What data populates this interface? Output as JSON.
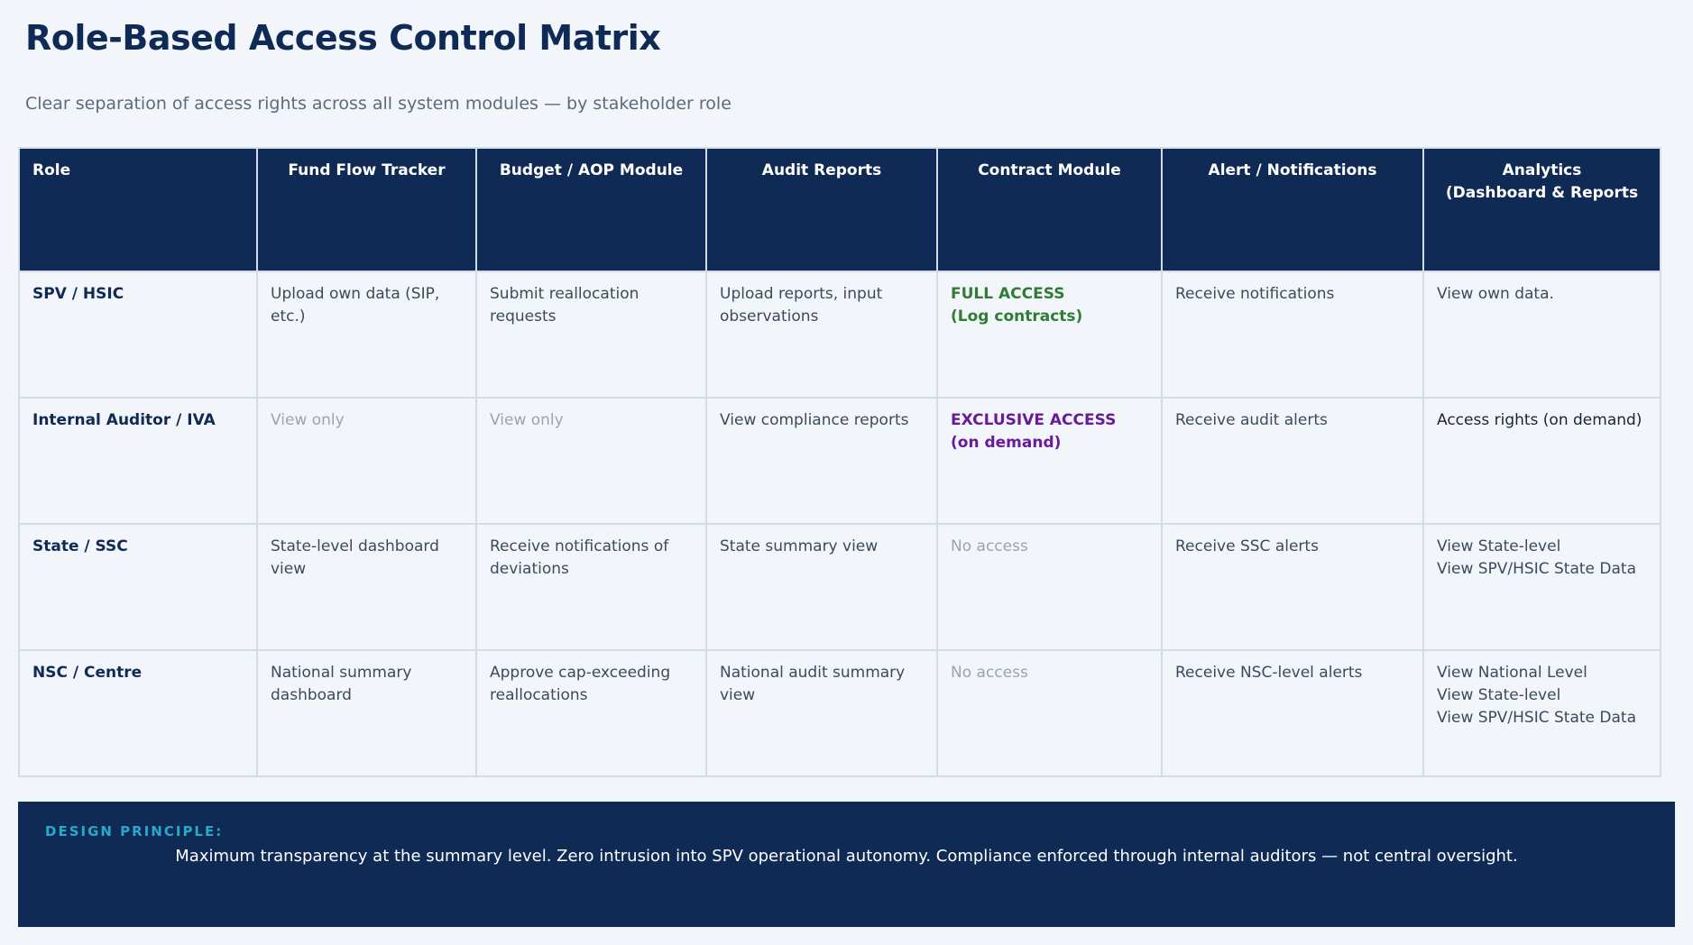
{
  "header": {
    "title": "Role-Based Access Control Matrix",
    "subtitle": "Clear separation of access rights across all system modules — by stakeholder role"
  },
  "table": {
    "columns": [
      "Role",
      "Fund Flow Tracker",
      "Budget / AOP Module",
      "Audit Reports",
      "Contract Module",
      "Alert / Notifications",
      "Analytics\n(Dashboard & Reports"
    ],
    "rows": [
      [
        "SPV / HSIC",
        "Upload own data (SIP,\netc.)",
        "Submit reallocation\nrequests",
        "Upload reports, input\nobservations",
        "FULL ACCESS\n(Log contracts)",
        "Receive notifications",
        "View own data."
      ],
      [
        "Internal Auditor / IVA",
        "View only",
        "View only",
        "View compliance reports",
        "EXCLUSIVE ACCESS\n(on demand)",
        "Receive audit alerts",
        "Access rights (on demand)"
      ],
      [
        "State / SSC",
        "State-level dashboard\nview",
        "Receive notifications of\ndeviations",
        "State summary view",
        "No access",
        "Receive SSC alerts",
        "View State-level\nView SPV/HSIC State Data"
      ],
      [
        "NSC / Centre",
        "National summary\ndashboard",
        "Approve cap-exceeding\nreallocations",
        "National audit summary\nview",
        "No access",
        "Receive NSC-level alerts",
        "View National Level\nView State-level\nView SPV/HSIC State Data"
      ]
    ]
  },
  "footer": {
    "label": "DESIGN PRINCIPLE:",
    "text": "Maximum transparency at the summary level. Zero intrusion into SPV operational autonomy. Compliance enforced through internal auditors — not central oversight."
  }
}
